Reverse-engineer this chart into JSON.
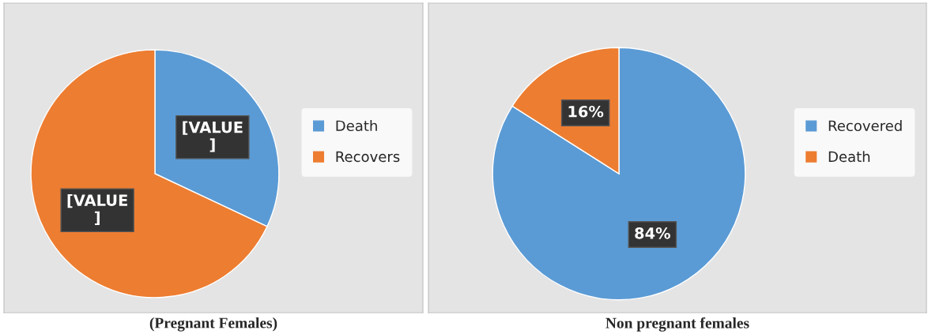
{
  "chart_data": [
    {
      "type": "pie",
      "title": "(Pregnant Females)",
      "categories": [
        "Death",
        "Recovers"
      ],
      "values": [
        32,
        68
      ],
      "colors": [
        "#5b9bd5",
        "#ed7d31"
      ],
      "value_labels": [
        "[VALUE ]",
        "[VALUE ]"
      ],
      "legend": "right"
    },
    {
      "type": "pie",
      "title": "Non pregnant females",
      "categories": [
        "Recovered",
        "Death"
      ],
      "values": [
        84,
        16
      ],
      "colors": [
        "#5b9bd5",
        "#ed7d31"
      ],
      "value_labels": [
        "84%",
        "16%"
      ],
      "legend": "right"
    }
  ]
}
